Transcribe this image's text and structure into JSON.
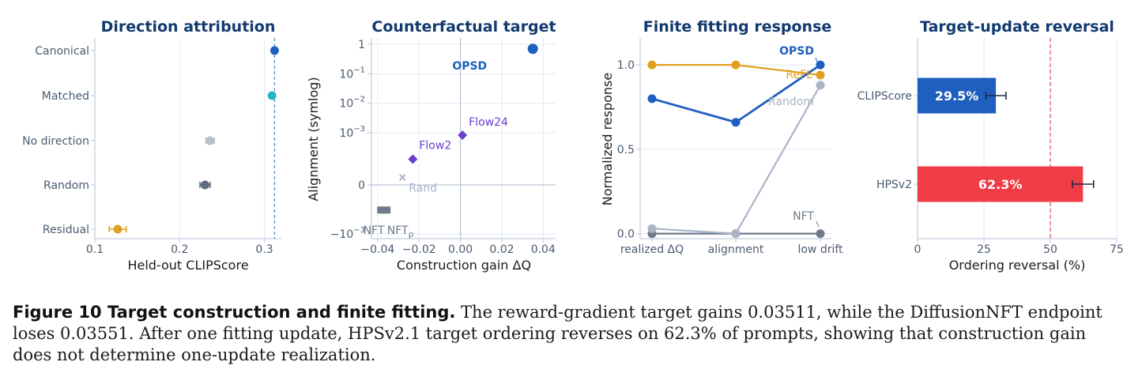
{
  "chart_data": [
    {
      "type": "scatter",
      "title": "Direction attribution",
      "xlabel": "Held-out CLIPScore",
      "ylabel": "",
      "xlim": [
        0.1,
        0.32
      ],
      "xticks": [
        0.1,
        0.2,
        0.3
      ],
      "xtick_labels": [
        "0.1",
        "0.2",
        "0.3"
      ],
      "categories": [
        "Canonical",
        "Matched",
        "No direction",
        "Random",
        "Residual"
      ],
      "values": [
        0.312,
        0.309,
        0.236,
        0.23,
        0.127
      ],
      "errors": [
        0.0,
        0.0,
        0.005,
        0.006,
        0.01
      ],
      "colors": [
        "#1f5fbf",
        "#26b3c4",
        "#b7c1cf",
        "#5f6b80",
        "#e0a020"
      ],
      "reference_line_x": 0.312,
      "grid": true
    },
    {
      "type": "scatter",
      "title": "Counterfactual target",
      "xlabel": "Construction gain  ΔQ",
      "ylabel": "Alignment (symlog)",
      "xlim": [
        -0.043,
        0.046
      ],
      "xticks": [
        -0.04,
        -0.02,
        0.0,
        0.02,
        0.04
      ],
      "xtick_labels": [
        "−0.04",
        "−0.02",
        "0.00",
        "0.02",
        "0.04"
      ],
      "yscale": "symlog",
      "ytick_labels": [
        "1",
        "10−1",
        "10−2",
        "10−3",
        "0",
        "−10−3"
      ],
      "points": [
        {
          "label": "OPSD",
          "x": 0.035,
          "y": 0.7,
          "color": "#1f5fbf",
          "marker": "circle"
        },
        {
          "label": "Flow24",
          "x": 0.001,
          "y": 0.00085,
          "color": "#6a3fcf",
          "marker": "diamond"
        },
        {
          "label": "Flow2",
          "x": -0.023,
          "y": 0.00016,
          "color": "#6a3fcf",
          "marker": "diamond"
        },
        {
          "label": "Rand",
          "x": -0.028,
          "y": 4e-05,
          "color": "#a9b4c6",
          "marker": "x"
        },
        {
          "label": "NFT",
          "x": -0.0355,
          "y": -0.00016,
          "color": "#6f7a8c",
          "marker": "square"
        },
        {
          "label": "NFT",
          "label_sub": "ρ",
          "x": -0.0385,
          "y": -0.00016,
          "color": "#6f7a8c",
          "marker": "square"
        }
      ],
      "grid": true
    },
    {
      "type": "line",
      "title": "Finite fitting response",
      "xlabel": "",
      "ylabel": "Normalized response",
      "categories": [
        "realized ΔQ",
        "alignment",
        "low drift"
      ],
      "ylim": [
        -0.03,
        1.16
      ],
      "yticks": [
        0.0,
        0.5,
        1.0
      ],
      "ytick_labels": [
        "0.0",
        "0.5",
        "1.0"
      ],
      "series": [
        {
          "name": "OPSD",
          "values": [
            0.8,
            0.66,
            1.0
          ],
          "color": "#1f5fbf"
        },
        {
          "name": "ReFL",
          "values": [
            1.0,
            1.0,
            0.94
          ],
          "color": "#e0a020"
        },
        {
          "name": "Random",
          "values": [
            0.03,
            0.0,
            0.88
          ],
          "color": "#a9b4c6"
        },
        {
          "name": "NFT",
          "values": [
            0.0,
            0.0,
            0.0
          ],
          "color": "#6f7a8c"
        }
      ],
      "grid": true
    },
    {
      "type": "bar",
      "title": "Target-update reversal",
      "xlabel": "Ordering reversal (%)",
      "ylabel": "",
      "orientation": "horizontal",
      "categories": [
        "CLIPScore",
        "HPSv2"
      ],
      "values": [
        29.5,
        62.3
      ],
      "errors": [
        3.8,
        4.0
      ],
      "value_labels": [
        "29.5%",
        "62.3%"
      ],
      "colors": [
        "#1f5fbf",
        "#f03c46"
      ],
      "xlim": [
        0,
        75
      ],
      "xticks": [
        0,
        25,
        50,
        75
      ],
      "xtick_labels": [
        "0",
        "25",
        "50",
        "75"
      ],
      "reference_line_x": 50,
      "grid": true
    }
  ],
  "caption": {
    "lead": "Figure 10  Target construction and finite fitting.",
    "text": " The reward-gradient target gains 0.03511, while the DiffusionNFT endpoint loses 0.03551. After one fitting update, HPSv2.1 target ordering reverses on 62.3% of prompts, showing that construction gain does not determine one-update realization."
  },
  "style": {
    "title_color": "#123a6e",
    "tick_color": "#4a5a72",
    "grid_color": "#e3e9f1",
    "axis_color": "#c4cfdd"
  }
}
